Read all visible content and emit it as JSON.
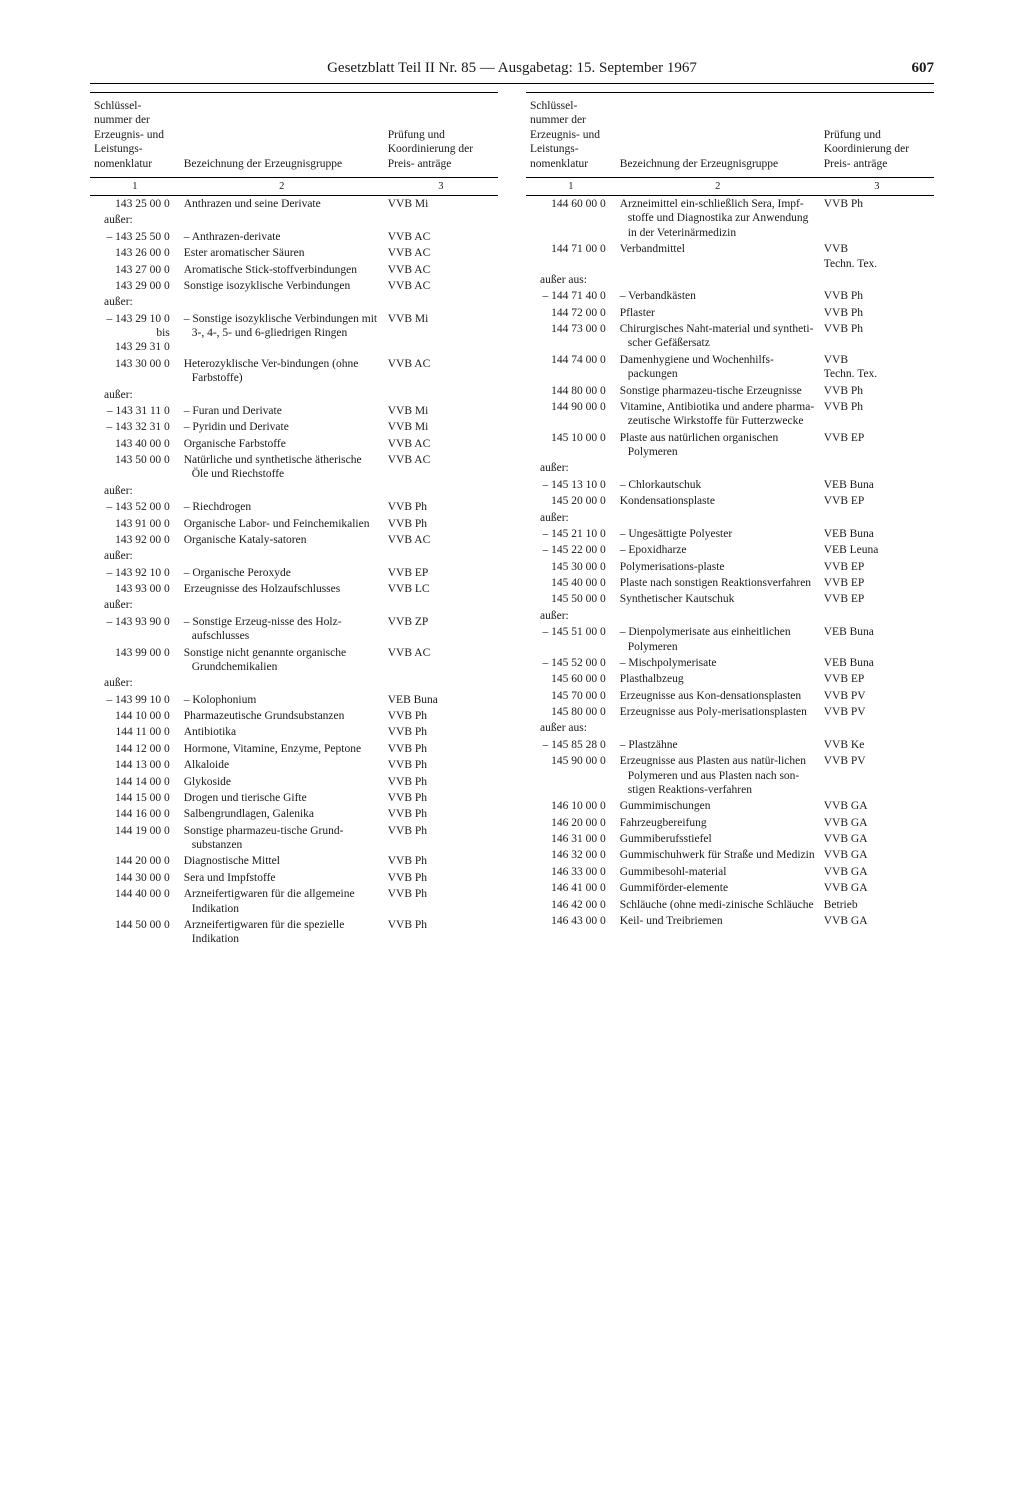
{
  "header": {
    "title": "Gesetzblatt Teil II Nr. 85 — Ausgabetag: 15. September 1967",
    "page_number": "607"
  },
  "table_headers": {
    "col1": "Schlüssel-\nnummer der\nErzeugnis-\nund Leistungs-\nnomenklatur",
    "col2": "Bezeichnung der\nErzeugnisgruppe",
    "col3": "Prüfung und\nKoordinierung\nder Preis-\nanträge",
    "n1": "1",
    "n2": "2",
    "n3": "3"
  },
  "left": [
    {
      "code": "143 25 00 0",
      "desc": "Anthrazen und seine Derivate",
      "auth": "VVB Mi"
    },
    {
      "code": "außer:",
      "note": true
    },
    {
      "code": "– 143 25 50 0",
      "desc": "– Anthrazen-derivate",
      "auth": "VVB AC"
    },
    {
      "code": "143 26 00 0",
      "desc": "Ester aromatischer Säuren",
      "auth": "VVB AC"
    },
    {
      "code": "143 27 00 0",
      "desc": "Aromatische Stick-stoffverbindungen",
      "auth": "VVB AC"
    },
    {
      "code": "143 29 00 0",
      "desc": "Sonstige isozyklische Verbindungen",
      "auth": "VVB AC"
    },
    {
      "code": "außer:",
      "note": true
    },
    {
      "code": "– 143 29 10 0\nbis\n143 29 31 0",
      "desc": "– Sonstige isozyklische Verbindungen mit 3-, 4-, 5- und 6-gliedrigen Ringen",
      "auth": "VVB Mi"
    },
    {
      "code": "143 30 00 0",
      "desc": "Heterozyklische Ver-bindungen (ohne Farbstoffe)",
      "auth": "VVB AC"
    },
    {
      "code": "außer:",
      "note": true
    },
    {
      "code": "– 143 31 11 0",
      "desc": "– Furan und Derivate",
      "auth": "VVB Mi"
    },
    {
      "code": "– 143 32 31 0",
      "desc": "– Pyridin und Derivate",
      "auth": "VVB Mi"
    },
    {
      "code": "143 40 00 0",
      "desc": "Organische Farbstoffe",
      "auth": "VVB AC"
    },
    {
      "code": "143 50 00 0",
      "desc": "Natürliche und synthetische ätherische Öle und Riechstoffe",
      "auth": "VVB AC"
    },
    {
      "code": "außer:",
      "note": true
    },
    {
      "code": "– 143 52 00 0",
      "desc": "– Riechdrogen",
      "auth": "VVB Ph"
    },
    {
      "code": "143 91 00 0",
      "desc": "Organische Labor- und Feinchemikalien",
      "auth": "VVB Ph"
    },
    {
      "code": "143 92 00 0",
      "desc": "Organische Kataly-satoren",
      "auth": "VVB AC"
    },
    {
      "code": "außer:",
      "note": true
    },
    {
      "code": "– 143 92 10 0",
      "desc": "– Organische Peroxyde",
      "auth": "VVB EP"
    },
    {
      "code": "143 93 00 0",
      "desc": "Erzeugnisse des Holzaufschlusses",
      "auth": "VVB LC"
    },
    {
      "code": "außer:",
      "note": true
    },
    {
      "code": "– 143 93 90 0",
      "desc": "– Sonstige Erzeug-nisse des Holz-aufschlusses",
      "auth": "VVB ZP"
    },
    {
      "code": "143 99 00 0",
      "desc": "Sonstige nicht genannte organische Grundchemikalien",
      "auth": "VVB AC"
    },
    {
      "code": "außer:",
      "note": true
    },
    {
      "code": "– 143 99 10 0",
      "desc": "– Kolophonium",
      "auth": "VEB Buna"
    },
    {
      "code": "144 10 00 0",
      "desc": "Pharmazeutische Grundsubstanzen",
      "auth": "VVB Ph"
    },
    {
      "code": "144 11 00 0",
      "desc": "Antibiotika",
      "auth": "VVB Ph"
    },
    {
      "code": "144 12 00 0",
      "desc": "Hormone, Vitamine, Enzyme, Peptone",
      "auth": "VVB Ph"
    },
    {
      "code": "144 13 00 0",
      "desc": "Alkaloide",
      "auth": "VVB Ph"
    },
    {
      "code": "144 14 00 0",
      "desc": "Glykoside",
      "auth": "VVB Ph"
    },
    {
      "code": "144 15 00 0",
      "desc": "Drogen und tierische Gifte",
      "auth": "VVB Ph"
    },
    {
      "code": "144 16 00 0",
      "desc": "Salbengrundlagen, Galenika",
      "auth": "VVB Ph"
    },
    {
      "code": "144 19 00 0",
      "desc": "Sonstige pharmazeu-tische Grund-substanzen",
      "auth": "VVB Ph"
    },
    {
      "code": "144 20 00 0",
      "desc": "Diagnostische Mittel",
      "auth": "VVB Ph"
    },
    {
      "code": "144 30 00 0",
      "desc": "Sera und Impfstoffe",
      "auth": "VVB Ph"
    },
    {
      "code": "144 40 00 0",
      "desc": "Arzneifertigwaren für die allgemeine Indikation",
      "auth": "VVB Ph"
    },
    {
      "code": "144 50 00 0",
      "desc": "Arzneifertigwaren für die spezielle Indikation",
      "auth": "VVB Ph"
    }
  ],
  "right": [
    {
      "code": "144 60 00 0",
      "desc": "Arzneimittel ein-schließlich Sera, Impf-stoffe und Diagnostika zur Anwendung in der Veterinärmedizin",
      "auth": "VVB Ph"
    },
    {
      "code": "144 71 00 0",
      "desc": "Verbandmittel",
      "auth": "VVB\nTechn. Tex."
    },
    {
      "code": "außer aus:",
      "note": true
    },
    {
      "code": "– 144 71 40 0",
      "desc": "– Verbandkästen",
      "auth": "VVB Ph"
    },
    {
      "code": "144 72 00 0",
      "desc": "Pflaster",
      "auth": "VVB Ph"
    },
    {
      "code": "144 73 00 0",
      "desc": "Chirurgisches Naht-material und syntheti-scher Gefäßersatz",
      "auth": "VVB Ph"
    },
    {
      "code": "144 74 00 0",
      "desc": "Damenhygiene und Wochenhilfs-packungen",
      "auth": "VVB\nTechn. Tex."
    },
    {
      "code": "144 80 00 0",
      "desc": "Sonstige pharmazeu-tische Erzeugnisse",
      "auth": "VVB Ph"
    },
    {
      "code": "144 90 00 0",
      "desc": "Vitamine, Antibiotika und andere pharma-zeutische Wirkstoffe für Futterzwecke",
      "auth": "VVB Ph"
    },
    {
      "code": "145 10 00 0",
      "desc": "Plaste aus natürlichen organischen Polymeren",
      "auth": "VVB EP"
    },
    {
      "code": "außer:",
      "note": true
    },
    {
      "code": "– 145 13 10 0",
      "desc": "– Chlorkautschuk",
      "auth": "VEB Buna"
    },
    {
      "code": "145 20 00 0",
      "desc": "Kondensationsplaste",
      "auth": "VVB EP"
    },
    {
      "code": "außer:",
      "note": true
    },
    {
      "code": "– 145 21 10 0",
      "desc": "– Ungesättigte Polyester",
      "auth": "VEB Buna"
    },
    {
      "code": "– 145 22 00 0",
      "desc": "– Epoxidharze",
      "auth": "VEB Leuna"
    },
    {
      "code": "145 30 00 0",
      "desc": "Polymerisations-plaste",
      "auth": "VVB EP"
    },
    {
      "code": "145 40 00 0",
      "desc": "Plaste nach sonstigen Reaktionsverfahren",
      "auth": "VVB EP"
    },
    {
      "code": "145 50 00 0",
      "desc": "Synthetischer Kautschuk",
      "auth": "VVB EP"
    },
    {
      "code": "außer:",
      "note": true
    },
    {
      "code": "– 145 51 00 0",
      "desc": "– Dienpolymerisate aus einheitlichen Polymeren",
      "auth": "VEB Buna"
    },
    {
      "code": "– 145 52 00 0",
      "desc": "– Mischpolymerisate",
      "auth": "VEB Buna"
    },
    {
      "code": "145 60 00 0",
      "desc": "Plasthalbzeug",
      "auth": "VVB EP"
    },
    {
      "code": "145 70 00 0",
      "desc": "Erzeugnisse aus Kon-densationsplasten",
      "auth": "VVB PV"
    },
    {
      "code": "145 80 00 0",
      "desc": "Erzeugnisse aus Poly-merisationsplasten",
      "auth": "VVB PV"
    },
    {
      "code": "außer aus:",
      "note": true
    },
    {
      "code": "– 145 85 28 0",
      "desc": "– Plastzähne",
      "auth": "VVB Ke"
    },
    {
      "code": "145 90 00 0",
      "desc": "Erzeugnisse aus Plasten aus natür-lichen Polymeren und aus Plasten nach son-stigen Reaktions-verfahren",
      "auth": "VVB PV"
    },
    {
      "code": "146 10 00 0",
      "desc": "Gummimischungen",
      "auth": "VVB GA"
    },
    {
      "code": "146 20 00 0",
      "desc": "Fahrzeugbereifung",
      "auth": "VVB GA"
    },
    {
      "code": "146 31 00 0",
      "desc": "Gummiberufsstiefel",
      "auth": "VVB GA"
    },
    {
      "code": "146 32 00 0",
      "desc": "Gummischuhwerk für Straße und Medizin",
      "auth": "VVB GA"
    },
    {
      "code": "146 33 00 0",
      "desc": "Gummibesohl-material",
      "auth": "VVB GA"
    },
    {
      "code": "146 41 00 0",
      "desc": "Gummiförder-elemente",
      "auth": "VVB GA"
    },
    {
      "code": "146 42 00 0",
      "desc": "Schläuche (ohne medi-zinische Schläuche",
      "auth": "Betrieb"
    },
    {
      "code": "146 43 00 0",
      "desc": "Keil- und Treibriemen",
      "auth": "VVB GA"
    }
  ]
}
